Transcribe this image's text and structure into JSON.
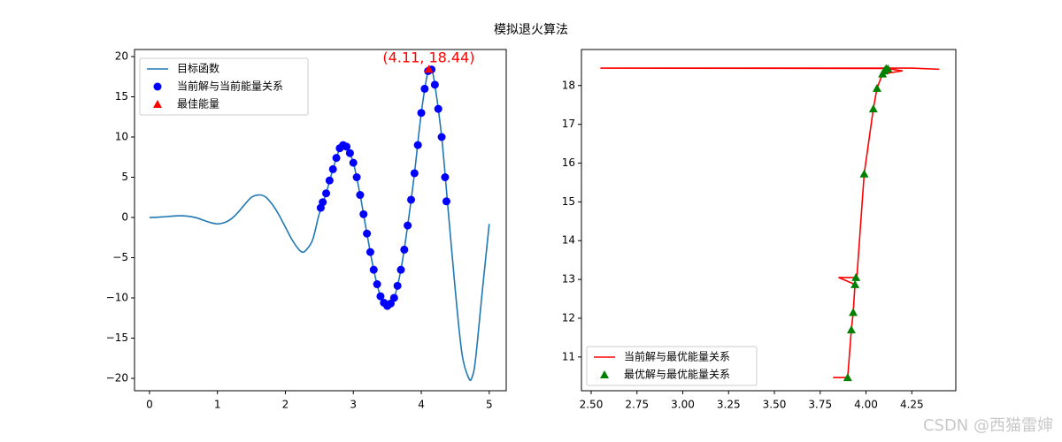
{
  "title": "模拟退火算法",
  "watermark": "CSDN @西猫雷婶",
  "chart_data": [
    {
      "type": "line",
      "xlim": [
        -0.22,
        5.25
      ],
      "ylim": [
        -21.54,
        20.88
      ],
      "xticks": [
        0,
        1,
        2,
        3,
        4,
        5
      ],
      "yticks": [
        {
          "value": -20,
          "label": "−20"
        },
        {
          "value": -15,
          "label": "−15"
        },
        {
          "value": -10,
          "label": "−10"
        },
        {
          "value": -5,
          "label": "−5"
        },
        0,
        5,
        10,
        15,
        20
      ],
      "legend": "upper left",
      "series": [
        {
          "name": "目标函数",
          "type": "line",
          "color": "#1f77b4",
          "x": [
            0,
            0.1,
            0.2,
            0.3,
            0.4,
            0.5,
            0.6,
            0.7,
            0.8,
            0.9,
            1.0,
            1.1,
            1.2,
            1.3,
            1.4,
            1.5,
            1.6,
            1.7,
            1.8,
            1.9,
            2.0,
            2.1,
            2.2,
            2.25,
            2.3,
            2.4,
            2.5,
            2.6,
            2.7,
            2.8,
            2.85,
            2.9,
            3.0,
            3.1,
            3.2,
            3.3,
            3.4,
            3.5,
            3.6,
            3.7,
            3.8,
            3.9,
            4.0,
            4.1,
            4.15,
            4.2,
            4.3,
            4.4,
            4.5,
            4.6,
            4.7,
            4.75,
            4.8,
            4.9,
            5.0
          ],
          "values": [
            0,
            0.02,
            0.07,
            0.14,
            0.2,
            0.2,
            0.12,
            -0.06,
            -0.36,
            -0.64,
            -0.8,
            -0.65,
            -0.2,
            0.6,
            1.6,
            2.5,
            2.8,
            2.6,
            1.7,
            0.4,
            -1.2,
            -2.8,
            -4.0,
            -4.3,
            -4.1,
            -2.8,
            0.5,
            3.0,
            6.0,
            8.6,
            9.0,
            8.8,
            6.8,
            2.8,
            -2.0,
            -6.5,
            -9.8,
            -11.0,
            -10.0,
            -6.5,
            -1.0,
            5.5,
            13.0,
            18.2,
            18.4,
            16.5,
            10.0,
            0.5,
            -9.0,
            -17.0,
            -20.0,
            -19.8,
            -17.5,
            -9.0,
            -0.8
          ]
        },
        {
          "name": "当前解与当前能量关系",
          "type": "scatter",
          "marker": "o",
          "color": "#0000ff",
          "x": [
            2.52,
            2.55,
            2.6,
            2.65,
            2.7,
            2.75,
            2.8,
            2.85,
            2.9,
            2.95,
            3.0,
            3.05,
            3.1,
            3.15,
            3.2,
            3.25,
            3.3,
            3.35,
            3.4,
            3.45,
            3.5,
            3.55,
            3.6,
            3.65,
            3.7,
            3.75,
            3.8,
            3.85,
            3.9,
            3.95,
            4.0,
            4.05,
            4.1,
            4.15,
            4.2,
            4.25,
            4.3,
            4.35,
            4.37
          ],
          "values": [
            1.2,
            1.9,
            3.0,
            4.6,
            6.0,
            7.4,
            8.6,
            9.0,
            8.8,
            8.0,
            6.8,
            5.0,
            2.8,
            0.4,
            -2.0,
            -4.3,
            -6.5,
            -8.3,
            -9.8,
            -10.6,
            -11.0,
            -10.7,
            -10.0,
            -8.5,
            -6.5,
            -4.0,
            -1.0,
            2.2,
            5.5,
            9.0,
            13.0,
            16.0,
            18.2,
            18.4,
            16.5,
            13.5,
            10.0,
            5.0,
            2.0
          ]
        },
        {
          "name": "最佳能量",
          "type": "scatter",
          "marker": "^",
          "color": "#ff0000",
          "x": [
            4.11
          ],
          "values": [
            18.44
          ]
        }
      ],
      "annotations": [
        {
          "text": "(4.11, 18.44)",
          "x": 4.11,
          "y": 18.44,
          "color": "#ff0000"
        }
      ]
    },
    {
      "type": "line",
      "xlim": [
        2.447,
        4.49
      ],
      "ylim": [
        10.13,
        18.93
      ],
      "xticks": [
        {
          "value": 2.5,
          "label": "2.50"
        },
        {
          "value": 2.75,
          "label": "2.75"
        },
        {
          "value": 3.0,
          "label": "3.00"
        },
        {
          "value": 3.25,
          "label": "3.25"
        },
        {
          "value": 3.5,
          "label": "3.50"
        },
        {
          "value": 3.75,
          "label": "3.75"
        },
        {
          "value": 4.0,
          "label": "4.00"
        },
        {
          "value": 4.25,
          "label": "4.25"
        }
      ],
      "yticks": [
        11,
        12,
        13,
        14,
        15,
        16,
        17,
        18
      ],
      "legend": "lower left",
      "series": [
        {
          "name": "当前解与最优能量关系",
          "type": "line",
          "color": "#ff0000",
          "x": [
            3.82,
            3.9,
            3.92,
            3.93,
            3.94,
            3.85,
            3.95,
            3.99,
            4.04,
            4.06,
            4.09,
            4.2,
            4.11,
            2.55,
            4.25,
            4.4
          ],
          "values": [
            10.47,
            10.47,
            11.7,
            12.15,
            12.87,
            13.05,
            13.05,
            15.72,
            17.4,
            17.93,
            18.3,
            18.38,
            18.44,
            18.45,
            18.45,
            18.42
          ]
        },
        {
          "name": "最优解与最优能量关系",
          "type": "scatter",
          "marker": "^",
          "color": "#008000",
          "x": [
            3.9,
            3.92,
            3.93,
            3.94,
            3.945,
            3.99,
            4.04,
            4.06,
            4.09,
            4.1,
            4.11,
            4.12
          ],
          "values": [
            10.47,
            11.7,
            12.15,
            12.87,
            13.05,
            15.72,
            17.4,
            17.93,
            18.3,
            18.38,
            18.44,
            18.43
          ]
        }
      ]
    }
  ]
}
